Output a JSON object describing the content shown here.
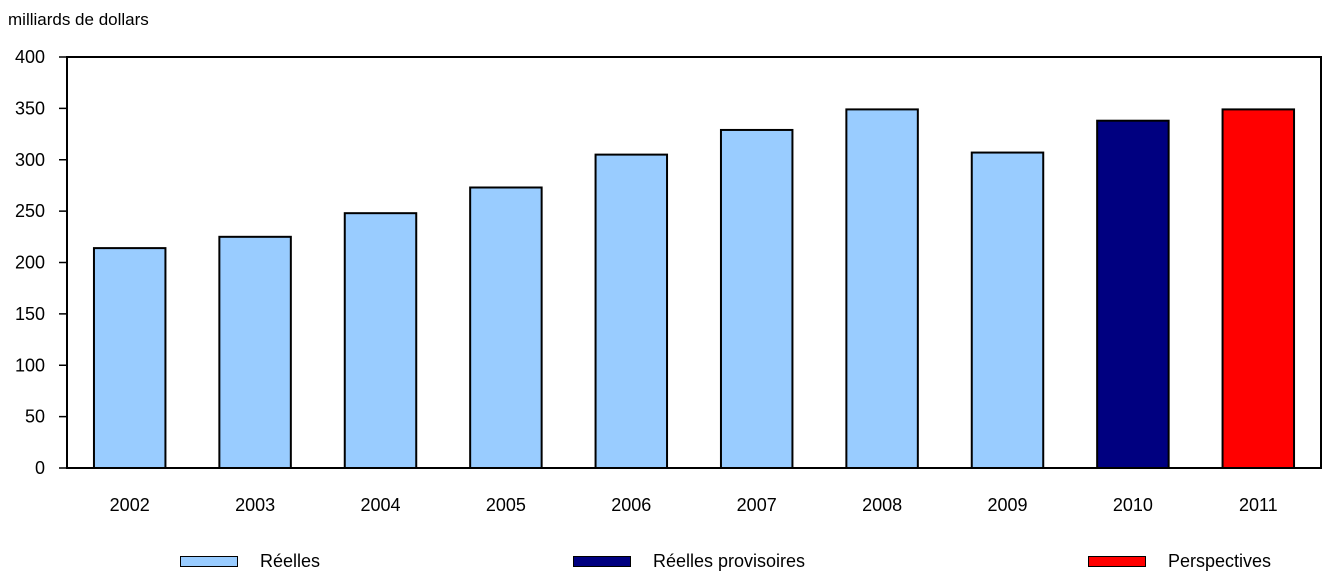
{
  "chart_data": {
    "type": "bar",
    "ylabel": "milliards de dollars",
    "categories": [
      "2002",
      "2003",
      "2004",
      "2005",
      "2006",
      "2007",
      "2008",
      "2009",
      "2010",
      "2011"
    ],
    "values": [
      214,
      225,
      248,
      273,
      305,
      329,
      349,
      307,
      338,
      349
    ],
    "bar_series": [
      "Réelles",
      "Réelles",
      "Réelles",
      "Réelles",
      "Réelles",
      "Réelles",
      "Réelles",
      "Réelles",
      "Réelles provisoires",
      "Perspectives"
    ],
    "ylim": [
      0,
      400
    ],
    "yticks": [
      "0",
      "50",
      "100",
      "150",
      "200",
      "250",
      "300",
      "350",
      "400"
    ],
    "grid": false,
    "legend": {
      "placement": "bottom",
      "items": [
        {
          "label": "Réelles",
          "color": "#99ccff"
        },
        {
          "label": "Réelles provisoires",
          "color": "#000080"
        },
        {
          "label": "Perspectives",
          "color": "#ff0000"
        }
      ]
    }
  }
}
